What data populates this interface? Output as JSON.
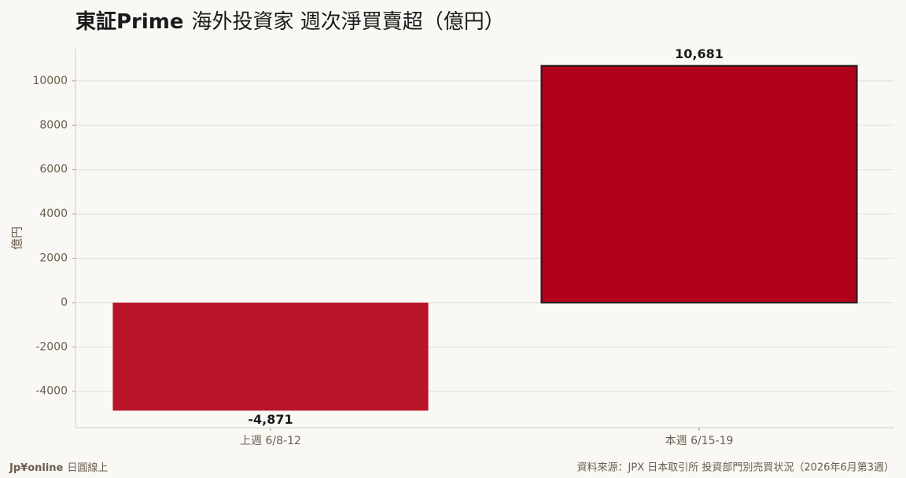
{
  "chart_data": {
    "type": "bar",
    "title_bold": "東証Prime",
    "title": "海外投資家 週次淨買賣超（億円）",
    "ylabel": "億円",
    "categories": [
      "上週 6/8-12",
      "本週 6/15-19"
    ],
    "values": [
      -4871,
      10681
    ],
    "value_labels": [
      "-4,871",
      "10,681"
    ],
    "colors": [
      "#b8152b",
      "#b0001a"
    ],
    "edge_colors": [
      "none",
      "#1e1e1e"
    ],
    "ylim": [
      -5640,
      11450
    ],
    "yticks": [
      -4000,
      -2000,
      0,
      2000,
      4000,
      6000,
      8000,
      10000
    ],
    "grid": true,
    "brand": "Jp¥online",
    "brand_sub": "日圓線上",
    "source": "資料來源：JPX 日本取引所 投資部門別売買状況（2026年6月第3週）"
  }
}
